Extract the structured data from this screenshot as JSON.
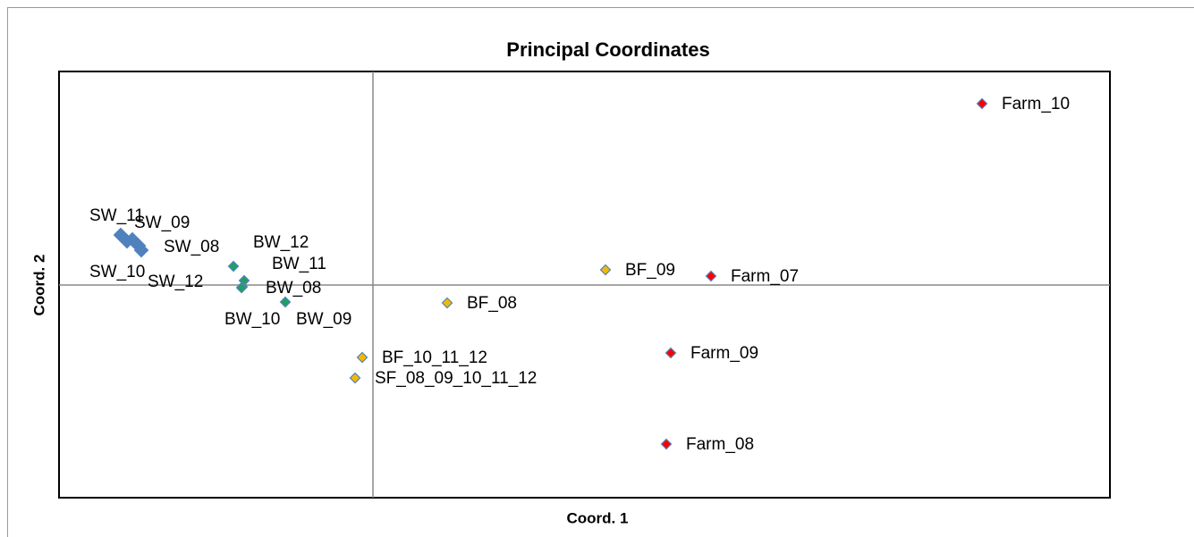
{
  "chart_data": {
    "type": "scatter",
    "title": "Principal Coordinates",
    "x_label": "Coord. 1",
    "y_label": "Coord. 2",
    "xlim": [
      -3.51,
      8.24
    ],
    "ylim": [
      -2.38,
      2.39
    ],
    "axis_lines_at_zero": true,
    "series": [
      {
        "color": "#4f81bd",
        "marker_size": 13,
        "labels": [
          "SW_11",
          "SW_09",
          "SW_08",
          "SW_10",
          "SW_12"
        ],
        "x": [
          -2.82,
          -2.69,
          -2.62,
          -2.75,
          -2.59
        ],
        "values": [
          0.56,
          0.51,
          0.44,
          0.49,
          0.39
        ]
      },
      {
        "color": "#1fa060",
        "marker_size": 9,
        "labels": [
          "BW_12",
          "BW_11",
          "BW_08",
          "BW_10",
          "BW_09"
        ],
        "x": [
          -1.56,
          -1.44,
          -1.46,
          -1.47,
          -0.98
        ],
        "values": [
          0.21,
          0.05,
          -0.02,
          -0.03,
          -0.19
        ]
      },
      {
        "color": "#f5b800",
        "marker_size": 9,
        "labels": [
          "BF_09",
          "BF_08",
          "BF_10_11_12",
          "SF_08_09_10_11_12"
        ],
        "x": [
          2.6,
          0.83,
          -0.12,
          -0.2
        ],
        "values": [
          0.17,
          -0.2,
          -0.81,
          -1.04
        ]
      },
      {
        "color": "#ff0000",
        "marker_size": 9,
        "labels": [
          "Farm_10",
          "Farm_07",
          "Farm_09",
          "Farm_08"
        ],
        "x": [
          6.81,
          3.78,
          3.33,
          3.28
        ],
        "values": [
          2.03,
          0.1,
          -0.76,
          -1.78
        ]
      }
    ]
  }
}
